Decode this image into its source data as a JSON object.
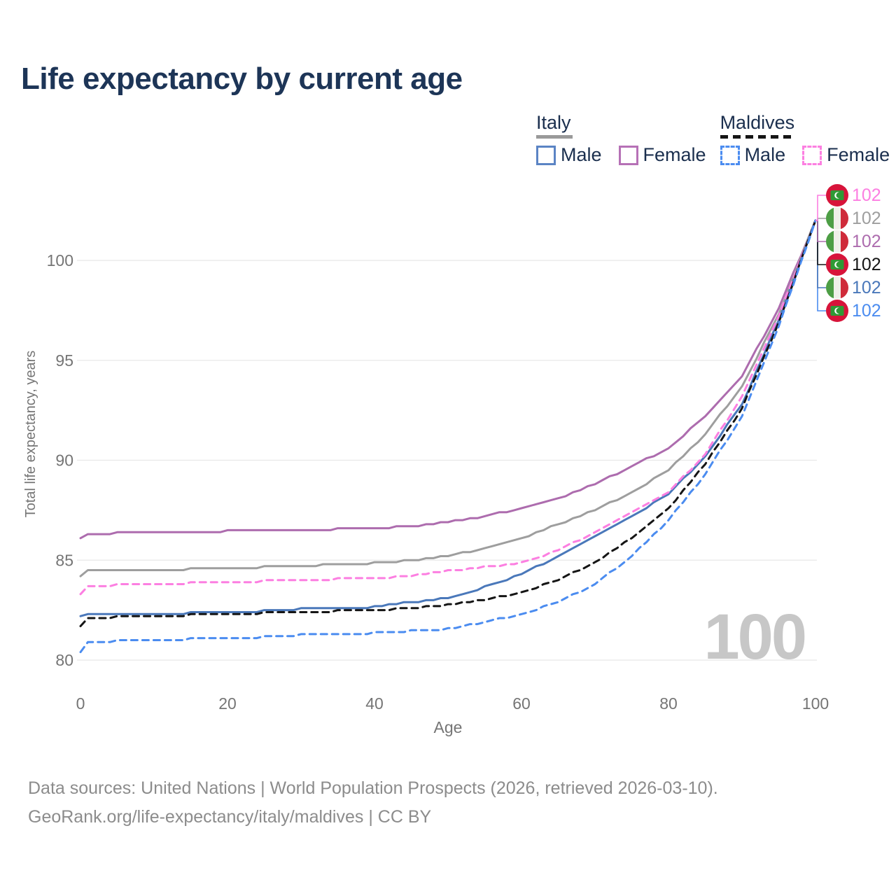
{
  "header": {
    "title": "Life expectancy by current age"
  },
  "legend": {
    "groups": [
      {
        "id": "italy",
        "label": "Italy",
        "line_style": "solid",
        "line_color": "#9a9a9a",
        "items": [
          {
            "id": "italy-male",
            "label": "Male",
            "color": "#5b84c4",
            "dashed": false
          },
          {
            "id": "italy-female",
            "label": "Female",
            "color": "#b671b6",
            "dashed": false
          }
        ]
      },
      {
        "id": "maldives",
        "label": "Maldives",
        "line_style": "dashed",
        "line_color": "#151515",
        "items": [
          {
            "id": "maldives-male",
            "label": "Male",
            "color": "#4b8cf0",
            "dashed": true
          },
          {
            "id": "maldives-female",
            "label": "Female",
            "color": "#fc7fe1",
            "dashed": true
          }
        ]
      }
    ]
  },
  "chart_data": {
    "type": "line",
    "title": "Life expectancy by current age",
    "xlabel": "Age",
    "ylabel": "Total life expectancy, years",
    "xlim": [
      0,
      100
    ],
    "ylim": [
      79.5,
      103
    ],
    "xticks": [
      "0",
      "20",
      "40",
      "60",
      "80",
      "100"
    ],
    "xtick_values": [
      0,
      20,
      40,
      60,
      80,
      100
    ],
    "yticks": [
      "80",
      "85",
      "90",
      "95",
      "100"
    ],
    "ytick_values": [
      80,
      85,
      90,
      95,
      100
    ],
    "grid": "horizontal",
    "legend_position": "top-right",
    "age_watermark": "100",
    "ages": [
      0,
      1,
      5,
      10,
      15,
      20,
      25,
      30,
      35,
      40,
      45,
      50,
      55,
      60,
      65,
      70,
      75,
      80,
      85,
      90,
      95,
      100
    ],
    "series": [
      {
        "id": "italy-female",
        "name": "Italy Female",
        "color": "#ad6cae",
        "dash": "solid",
        "values": [
          86.1,
          86.3,
          86.35,
          86.4,
          86.4,
          86.45,
          86.5,
          86.5,
          86.55,
          86.6,
          86.7,
          86.9,
          87.2,
          87.6,
          88.1,
          88.8,
          89.7,
          90.6,
          92.2,
          94.2,
          97.6,
          102
        ],
        "end_label": "102"
      },
      {
        "id": "italy-both",
        "name": "Italy",
        "color": "#9e9e9e",
        "dash": "solid",
        "values": [
          84.2,
          84.45,
          84.5,
          84.5,
          84.55,
          84.6,
          84.65,
          84.7,
          84.8,
          84.85,
          85.0,
          85.2,
          85.6,
          86.1,
          86.8,
          87.5,
          88.4,
          89.5,
          91.3,
          93.7,
          97.3,
          102
        ],
        "end_label": "102"
      },
      {
        "id": "italy-male",
        "name": "Italy Male",
        "color": "#4a78ba",
        "dash": "solid",
        "values": [
          82.2,
          82.25,
          82.3,
          82.3,
          82.35,
          82.4,
          82.45,
          82.55,
          82.6,
          82.65,
          82.9,
          83.1,
          83.65,
          84.3,
          85.2,
          86.2,
          87.2,
          88.3,
          90.2,
          92.8,
          97.0,
          102
        ],
        "end_label": "102"
      },
      {
        "id": "maldives-female",
        "name": "Maldives Female",
        "color": "#fc7fe1",
        "dash": "dashed",
        "values": [
          83.3,
          83.7,
          83.75,
          83.8,
          83.85,
          83.9,
          83.95,
          84.0,
          84.05,
          84.1,
          84.2,
          84.45,
          84.65,
          84.85,
          85.5,
          86.4,
          87.4,
          88.4,
          90.3,
          93.2,
          97.2,
          102
        ],
        "end_label": "102"
      },
      {
        "id": "maldives-both",
        "name": "Maldives",
        "color": "#151515",
        "dash": "dashed",
        "values": [
          81.7,
          82.1,
          82.15,
          82.2,
          82.25,
          82.3,
          82.35,
          82.4,
          82.45,
          82.5,
          82.6,
          82.75,
          83.0,
          83.4,
          84.0,
          84.9,
          86.1,
          87.6,
          89.8,
          92.6,
          96.9,
          102
        ],
        "end_label": "102"
      },
      {
        "id": "maldives-male",
        "name": "Maldives Male",
        "color": "#4b8cf0",
        "dash": "dashed",
        "values": [
          80.4,
          80.9,
          80.95,
          81.0,
          81.05,
          81.1,
          81.15,
          81.25,
          81.3,
          81.35,
          81.45,
          81.55,
          81.9,
          82.3,
          82.9,
          83.8,
          85.2,
          87.0,
          89.3,
          92.2,
          96.7,
          102
        ],
        "end_label": "102"
      }
    ],
    "end_labels": [
      {
        "series": "maldives-female",
        "flag": "maldives",
        "text": "102",
        "color": "#fc7fe1"
      },
      {
        "series": "italy-both",
        "flag": "italy",
        "text": "102",
        "color": "#9e9e9e"
      },
      {
        "series": "italy-female",
        "flag": "italy",
        "text": "102",
        "color": "#ad6cae"
      },
      {
        "series": "maldives-both",
        "flag": "maldives",
        "text": "102",
        "color": "#151515"
      },
      {
        "series": "italy-male",
        "flag": "italy",
        "text": "102",
        "color": "#4a78ba"
      },
      {
        "series": "maldives-male",
        "flag": "maldives",
        "text": "102",
        "color": "#4b8cf0"
      }
    ]
  },
  "footer": {
    "line1": "Data sources: United Nations | World Population Prospects (2026, retrieved 2026-03-10).",
    "line2": "GeoRank.org/life-expectancy/italy/maldives | CC BY"
  }
}
